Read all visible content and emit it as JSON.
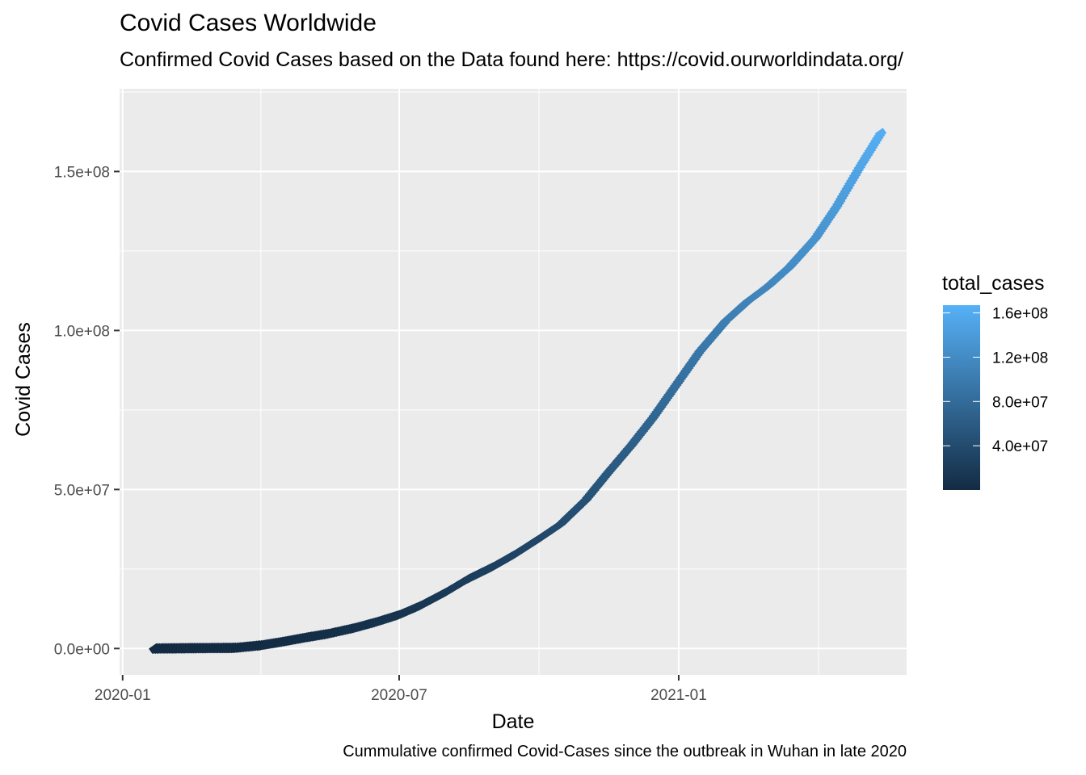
{
  "title": "Covid Cases Worldwide",
  "subtitle": "Confirmed Covid Cases based on the Data found here: https://covid.ourworldindata.org/",
  "caption": "Cummulative confirmed Covid-Cases since the outbreak in Wuhan in late 2020",
  "chart_data": {
    "type": "scatter",
    "xlabel": "Date",
    "ylabel": "Covid Cases",
    "x_ticks": [
      "2020-01",
      "2020-07",
      "2021-01"
    ],
    "x_tick_values": [
      "2020-01-01",
      "2020-07-01",
      "2021-01-01"
    ],
    "y_ticks": [
      "0.0e+00",
      "5.0e+07",
      "1.0e+08",
      "1.5e+08"
    ],
    "y_tick_values": [
      0,
      50000000,
      100000000,
      150000000
    ],
    "xlim": [
      "2019-12-30",
      "2021-05-31"
    ],
    "ylim": [
      -8300000,
      176000000
    ],
    "grid": true,
    "panel_background": "#ebebeb",
    "grid_color": "#ffffff",
    "legend": {
      "title": "total_cases",
      "position": "right",
      "low_color": "#132b43",
      "high_color": "#56b1f7",
      "range": [
        0,
        167000000
      ],
      "labels": [
        "1.6e+08",
        "1.2e+08",
        "8.0e+07",
        "4.0e+07"
      ],
      "values": [
        160000000,
        120000000,
        80000000,
        40000000
      ]
    },
    "series": [
      {
        "x": [
          "2020-01-22",
          "2020-02-15",
          "2020-03-15",
          "2020-04-01",
          "2020-04-15",
          "2020-05-01",
          "2020-05-15",
          "2020-06-01",
          "2020-06-15",
          "2020-07-01",
          "2020-07-15",
          "2020-08-01",
          "2020-08-15",
          "2020-09-01",
          "2020-09-15",
          "2020-10-01",
          "2020-10-15",
          "2020-11-01",
          "2020-11-15",
          "2020-12-01",
          "2020-12-15",
          "2021-01-01",
          "2021-01-15",
          "2021-02-01",
          "2021-02-15",
          "2021-03-01",
          "2021-03-15",
          "2021-04-01",
          "2021-04-15",
          "2021-05-01",
          "2021-05-14"
        ],
        "y": [
          0,
          100000,
          200000,
          1000000,
          2100000,
          3500000,
          4600000,
          6400000,
          8200000,
          10600000,
          13500000,
          17800000,
          21800000,
          25800000,
          29600000,
          34500000,
          39000000,
          46800000,
          55000000,
          64000000,
          72500000,
          84000000,
          93500000,
          103000000,
          109000000,
          114000000,
          120000000,
          129000000,
          139000000,
          152000000,
          162000000
        ]
      }
    ]
  }
}
